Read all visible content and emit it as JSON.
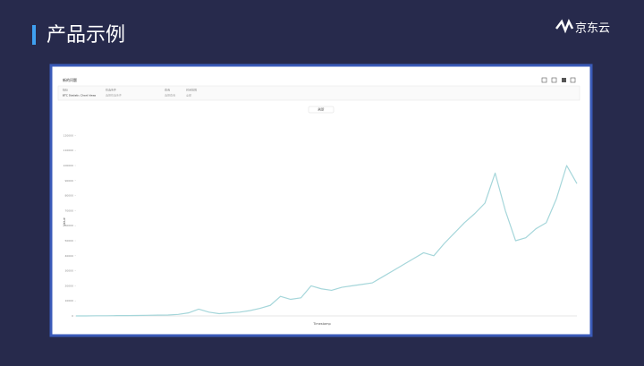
{
  "slide": {
    "title": "产品示例",
    "logo": "京东云"
  },
  "app": {
    "page_title": "新的问题",
    "filters": [
      {
        "label": "指标",
        "value": "BTC Statistic Chart Ideas"
      },
      {
        "label": "筛选条件",
        "value": "选择筛选条件"
      },
      {
        "label": "查询",
        "value": "选择查询"
      },
      {
        "label": "时间范围",
        "value": "全部"
      }
    ],
    "refresh": "刷新"
  },
  "chart_data": {
    "type": "line",
    "x_label": "Timestamp",
    "y_label": "Value",
    "ylim": [
      0,
      125000
    ],
    "yticks": [
      0,
      10000,
      20000,
      30000,
      40000,
      50000,
      60000,
      70000,
      80000,
      90000,
      100000,
      110000,
      120000
    ],
    "color": "#a5d6da",
    "values": [
      0,
      0,
      100,
      100,
      200,
      200,
      300,
      400,
      500,
      600,
      1000,
      2000,
      4500,
      2500,
      1500,
      2000,
      2500,
      3500,
      5000,
      7000,
      13000,
      11000,
      12000,
      20000,
      18000,
      17000,
      19000,
      20000,
      21000,
      22000,
      26000,
      30000,
      34000,
      38000,
      42000,
      40000,
      48000,
      55000,
      62000,
      68000,
      75000,
      95000,
      70000,
      50000,
      52000,
      58000,
      62000,
      78000,
      100000,
      88000
    ]
  }
}
